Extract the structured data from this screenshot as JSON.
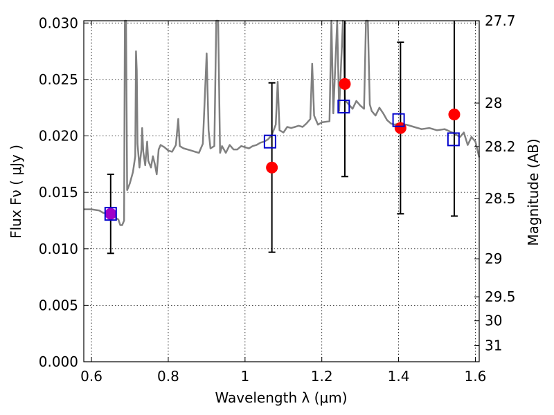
{
  "chart_data": {
    "type": "scatter",
    "xlabel": "Wavelength  λ (μm)",
    "ylabel": "Flux  Fν  ( μJy )",
    "ylabel_right": "Magnitude (AB)",
    "xlim": [
      0.58,
      1.61
    ],
    "ylim": [
      0.0,
      0.0302
    ],
    "grid": true,
    "x_ticks": [
      0.6,
      0.8,
      1.0,
      1.2,
      1.4,
      1.6
    ],
    "x_tick_labels": [
      "0.6",
      "0.8",
      "1",
      "1.2",
      "1.4",
      "1.6"
    ],
    "y_ticks": [
      0.0,
      0.005,
      0.01,
      0.015,
      0.02,
      0.025,
      0.03
    ],
    "y_tick_labels": [
      "0.000",
      "0.005",
      "0.010",
      "0.015",
      "0.020",
      "0.025",
      "0.030"
    ],
    "right_ticks": [
      {
        "label": "27.7",
        "mag": 27.7
      },
      {
        "label": "28",
        "mag": 28.0
      },
      {
        "label": "28.2",
        "mag": 28.2
      },
      {
        "label": "28.5",
        "mag": 28.5
      },
      {
        "label": "29",
        "mag": 29.0
      },
      {
        "label": "29.5",
        "mag": 29.5
      },
      {
        "label": "30",
        "mag": 30.0
      },
      {
        "label": "31",
        "mag": 31.0
      }
    ],
    "observed": {
      "marker": "circle",
      "color": "#ff0000",
      "points": [
        {
          "x": 0.65,
          "y": 0.0131,
          "yerr_low": 0.0096,
          "yerr_high": 0.0166
        },
        {
          "x": 1.07,
          "y": 0.0172,
          "yerr_low": 0.0097,
          "yerr_high": 0.0247
        },
        {
          "x": 1.26,
          "y": 0.0246,
          "yerr_low": 0.0164,
          "yerr_high": 0.0302
        },
        {
          "x": 1.405,
          "y": 0.0207,
          "yerr_low": 0.0131,
          "yerr_high": 0.0283
        },
        {
          "x": 1.545,
          "y": 0.0219,
          "yerr_low": 0.0129,
          "yerr_high": 0.0302
        }
      ]
    },
    "model_photometry": {
      "marker": "square",
      "color": "#0000cc",
      "points": [
        {
          "x": 0.65,
          "y": 0.0131
        },
        {
          "x": 1.065,
          "y": 0.0195
        },
        {
          "x": 1.257,
          "y": 0.0226
        },
        {
          "x": 1.4,
          "y": 0.0214
        },
        {
          "x": 1.543,
          "y": 0.0197
        }
      ]
    },
    "overlap_color": "#a000c8",
    "spectrum": {
      "color": "#808080",
      "points": [
        [
          0.58,
          0.0135
        ],
        [
          0.6,
          0.0135
        ],
        [
          0.62,
          0.0134
        ],
        [
          0.63,
          0.0132
        ],
        [
          0.64,
          0.0131
        ],
        [
          0.66,
          0.0128
        ],
        [
          0.67,
          0.0126
        ],
        [
          0.675,
          0.0121
        ],
        [
          0.68,
          0.0121
        ],
        [
          0.685,
          0.0125
        ],
        [
          0.687,
          0.0302
        ],
        [
          0.69,
          0.0302
        ],
        [
          0.693,
          0.0152
        ],
        [
          0.7,
          0.0158
        ],
        [
          0.708,
          0.0168
        ],
        [
          0.714,
          0.0182
        ],
        [
          0.716,
          0.0275
        ],
        [
          0.718,
          0.0258
        ],
        [
          0.72,
          0.0193
        ],
        [
          0.725,
          0.0172
        ],
        [
          0.73,
          0.0188
        ],
        [
          0.732,
          0.0207
        ],
        [
          0.735,
          0.0186
        ],
        [
          0.74,
          0.0174
        ],
        [
          0.745,
          0.0195
        ],
        [
          0.748,
          0.0178
        ],
        [
          0.755,
          0.0172
        ],
        [
          0.76,
          0.0182
        ],
        [
          0.765,
          0.0175
        ],
        [
          0.77,
          0.0166
        ],
        [
          0.775,
          0.0188
        ],
        [
          0.78,
          0.0192
        ],
        [
          0.79,
          0.019
        ],
        [
          0.8,
          0.0187
        ],
        [
          0.81,
          0.0186
        ],
        [
          0.815,
          0.0189
        ],
        [
          0.82,
          0.0192
        ],
        [
          0.826,
          0.0215
        ],
        [
          0.83,
          0.0191
        ],
        [
          0.84,
          0.0189
        ],
        [
          0.85,
          0.0188
        ],
        [
          0.86,
          0.0187
        ],
        [
          0.87,
          0.0186
        ],
        [
          0.88,
          0.0185
        ],
        [
          0.89,
          0.0193
        ],
        [
          0.895,
          0.0232
        ],
        [
          0.9,
          0.0273
        ],
        [
          0.905,
          0.0205
        ],
        [
          0.91,
          0.0189
        ],
        [
          0.92,
          0.0191
        ],
        [
          0.925,
          0.0302
        ],
        [
          0.93,
          0.0302
        ],
        [
          0.935,
          0.0185
        ],
        [
          0.94,
          0.0191
        ],
        [
          0.95,
          0.0185
        ],
        [
          0.96,
          0.0192
        ],
        [
          0.97,
          0.0188
        ],
        [
          0.98,
          0.0188
        ],
        [
          0.99,
          0.0191
        ],
        [
          1.0,
          0.019
        ],
        [
          1.01,
          0.0189
        ],
        [
          1.02,
          0.0191
        ],
        [
          1.03,
          0.0192
        ],
        [
          1.04,
          0.0194
        ],
        [
          1.05,
          0.0195
        ],
        [
          1.06,
          0.0197
        ],
        [
          1.07,
          0.0201
        ],
        [
          1.08,
          0.021
        ],
        [
          1.085,
          0.0248
        ],
        [
          1.09,
          0.0205
        ],
        [
          1.1,
          0.0203
        ],
        [
          1.11,
          0.0208
        ],
        [
          1.12,
          0.0207
        ],
        [
          1.13,
          0.0208
        ],
        [
          1.14,
          0.0209
        ],
        [
          1.15,
          0.0208
        ],
        [
          1.16,
          0.0211
        ],
        [
          1.17,
          0.0215
        ],
        [
          1.175,
          0.0264
        ],
        [
          1.18,
          0.0218
        ],
        [
          1.19,
          0.021
        ],
        [
          1.2,
          0.0212
        ],
        [
          1.22,
          0.0213
        ],
        [
          1.225,
          0.0302
        ],
        [
          1.23,
          0.022
        ],
        [
          1.24,
          0.0302
        ],
        [
          1.245,
          0.0222
        ],
        [
          1.255,
          0.0302
        ],
        [
          1.26,
          0.0232
        ],
        [
          1.27,
          0.0228
        ],
        [
          1.28,
          0.0224
        ],
        [
          1.29,
          0.0231
        ],
        [
          1.3,
          0.0227
        ],
        [
          1.31,
          0.0224
        ],
        [
          1.315,
          0.0302
        ],
        [
          1.32,
          0.0302
        ],
        [
          1.325,
          0.0228
        ],
        [
          1.33,
          0.0222
        ],
        [
          1.34,
          0.0218
        ],
        [
          1.35,
          0.0225
        ],
        [
          1.36,
          0.022
        ],
        [
          1.37,
          0.0214
        ],
        [
          1.38,
          0.0211
        ],
        [
          1.39,
          0.021
        ],
        [
          1.4,
          0.0211
        ],
        [
          1.42,
          0.021
        ],
        [
          1.44,
          0.0208
        ],
        [
          1.46,
          0.0206
        ],
        [
          1.48,
          0.0207
        ],
        [
          1.5,
          0.0205
        ],
        [
          1.52,
          0.0206
        ],
        [
          1.54,
          0.0203
        ],
        [
          1.56,
          0.0199
        ],
        [
          1.57,
          0.0203
        ],
        [
          1.58,
          0.0192
        ],
        [
          1.59,
          0.0199
        ],
        [
          1.6,
          0.0195
        ],
        [
          1.61,
          0.0181
        ]
      ]
    }
  }
}
